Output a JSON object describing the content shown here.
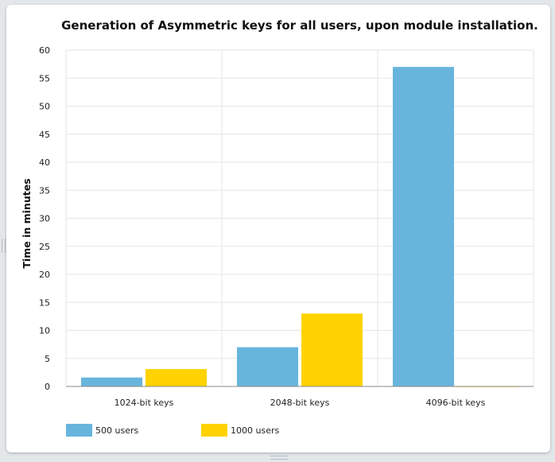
{
  "chart_data": {
    "type": "bar",
    "title": "Generation of Asymmetric keys for all users, upon module installation.",
    "xlabel": "",
    "ylabel": "Time in minutes",
    "categories": [
      "1024-bit keys",
      "2048-bit keys",
      "4096-bit keys"
    ],
    "series": [
      {
        "name": "500 users",
        "values": [
          1.6,
          7,
          57
        ],
        "color": "#67b5dc"
      },
      {
        "name": "1000 users",
        "values": [
          3.1,
          13,
          0
        ],
        "color": "#ffd200"
      }
    ],
    "ylim": [
      0,
      60
    ],
    "yticks": [
      0,
      5,
      10,
      15,
      20,
      25,
      30,
      35,
      40,
      45,
      50,
      55,
      60
    ],
    "grid": true,
    "legend_position": "bottom-left"
  }
}
